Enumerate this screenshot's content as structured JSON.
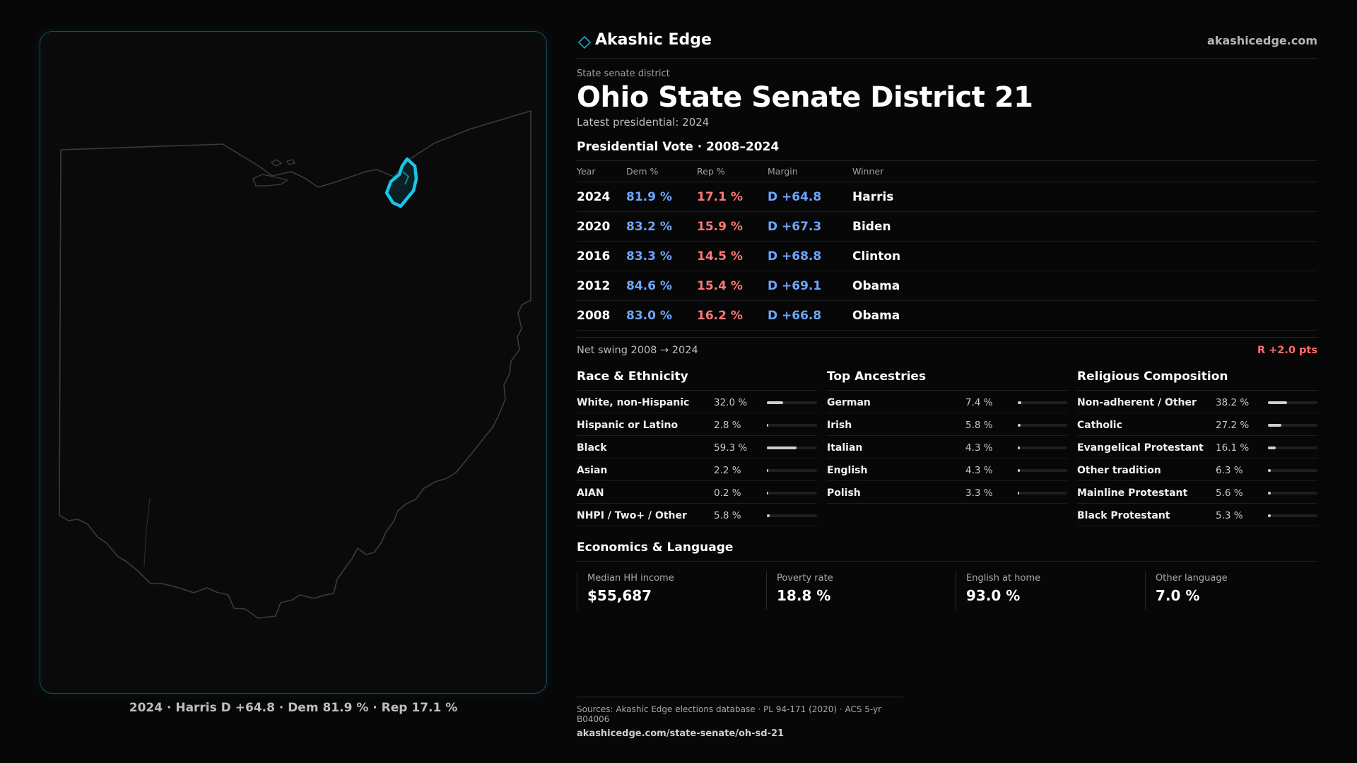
{
  "brand": {
    "name": "Akashic Edge",
    "url": "akashicedge.com",
    "icon": "diamond-outline-icon"
  },
  "header": {
    "eyebrow": "State senate district",
    "title": "Ohio State Senate District 21",
    "subtitle": "Latest presidential: 2024"
  },
  "votes": {
    "title": "Presidential Vote · 2008–2024",
    "columns": {
      "year": "Year",
      "dem": "Dem %",
      "rep": "Rep %",
      "margin": "Margin",
      "winner": "Winner"
    },
    "rows": [
      {
        "year": "2024",
        "dem": "81.9 %",
        "rep": "17.1 %",
        "margin": "D +64.8",
        "winner": "Harris"
      },
      {
        "year": "2020",
        "dem": "83.2 %",
        "rep": "15.9 %",
        "margin": "D +67.3",
        "winner": "Biden"
      },
      {
        "year": "2016",
        "dem": "83.3 %",
        "rep": "14.5 %",
        "margin": "D +68.8",
        "winner": "Clinton"
      },
      {
        "year": "2012",
        "dem": "84.6 %",
        "rep": "15.4 %",
        "margin": "D +69.1",
        "winner": "Obama"
      },
      {
        "year": "2008",
        "dem": "83.0 %",
        "rep": "16.2 %",
        "margin": "D +66.8",
        "winner": "Obama"
      }
    ]
  },
  "swing": {
    "label": "Net swing 2008 → 2024",
    "value": "R +2.0 pts"
  },
  "race": {
    "title": "Race & Ethnicity",
    "rows": [
      {
        "label": "White, non-Hispanic",
        "value": "32.0 %",
        "pct": 32.0
      },
      {
        "label": "Hispanic or Latino",
        "value": "2.8 %",
        "pct": 2.8
      },
      {
        "label": "Black",
        "value": "59.3 %",
        "pct": 59.3
      },
      {
        "label": "Asian",
        "value": "2.2 %",
        "pct": 2.2
      },
      {
        "label": "AIAN",
        "value": "0.2 %",
        "pct": 0.2
      },
      {
        "label": "NHPI / Two+ / Other",
        "value": "5.8 %",
        "pct": 5.8
      }
    ]
  },
  "ancestry": {
    "title": "Top Ancestries",
    "rows": [
      {
        "label": "German",
        "value": "7.4 %",
        "pct": 7.4
      },
      {
        "label": "Irish",
        "value": "5.8 %",
        "pct": 5.8
      },
      {
        "label": "Italian",
        "value": "4.3 %",
        "pct": 4.3
      },
      {
        "label": "English",
        "value": "4.3 %",
        "pct": 4.3
      },
      {
        "label": "Polish",
        "value": "3.3 %",
        "pct": 3.3
      }
    ]
  },
  "religion": {
    "title": "Religious Composition",
    "rows": [
      {
        "label": "Non-adherent / Other",
        "value": "38.2 %",
        "pct": 38.2
      },
      {
        "label": "Catholic",
        "value": "27.2 %",
        "pct": 27.2
      },
      {
        "label": "Evangelical Protestant",
        "value": "16.1 %",
        "pct": 16.1
      },
      {
        "label": "Other tradition",
        "value": "6.3 %",
        "pct": 6.3
      },
      {
        "label": "Mainline Protestant",
        "value": "5.6 %",
        "pct": 5.6
      },
      {
        "label": "Black Protestant",
        "value": "5.3 %",
        "pct": 5.3
      }
    ]
  },
  "economics": {
    "title": "Economics & Language",
    "cards": [
      {
        "label": "Median HH income",
        "value": "$55,687"
      },
      {
        "label": "Poverty rate",
        "value": "18.8 %"
      },
      {
        "label": "English at home",
        "value": "93.0 %"
      },
      {
        "label": "Other language",
        "value": "7.0 %"
      }
    ]
  },
  "map": {
    "caption": "2024 · Harris D +64.8 · Dem 81.9 % · Rep 17.1 %",
    "outline_color": "#3b3b3b",
    "highlight_color": "#19c6e8"
  },
  "sources": {
    "text": "Sources: Akashic Edge elections database · PL 94-171 (2020) · ACS 5-yr B04006",
    "url": "akashicedge.com/state-senate/oh-sd-21"
  }
}
